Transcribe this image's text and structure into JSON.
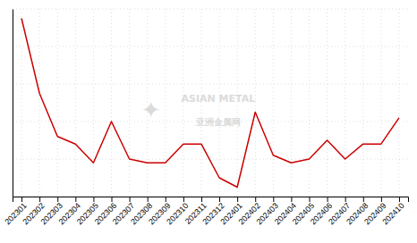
{
  "chart_data": {
    "type": "line",
    "categories": [
      "202301",
      "202302",
      "202303",
      "202304",
      "202305",
      "202306",
      "202307",
      "202308",
      "202309",
      "202310",
      "202311",
      "202312",
      "202401",
      "202402",
      "202403",
      "202404",
      "202405",
      "202406",
      "202407",
      "202408",
      "202409",
      "202410"
    ],
    "values": [
      95,
      55,
      32,
      28,
      18,
      40,
      20,
      18,
      18,
      28,
      28,
      10,
      5,
      45,
      22,
      18,
      20,
      30,
      20,
      28,
      28,
      42
    ],
    "color": "#cc0000",
    "ylim": [
      0,
      100
    ],
    "yticks": [
      0,
      20,
      40,
      60,
      80,
      100
    ],
    "grid": true,
    "tick_labels": "x",
    "annotations": [
      "ASIAN METAL",
      "亚洲金属网",
      "✦"
    ]
  }
}
